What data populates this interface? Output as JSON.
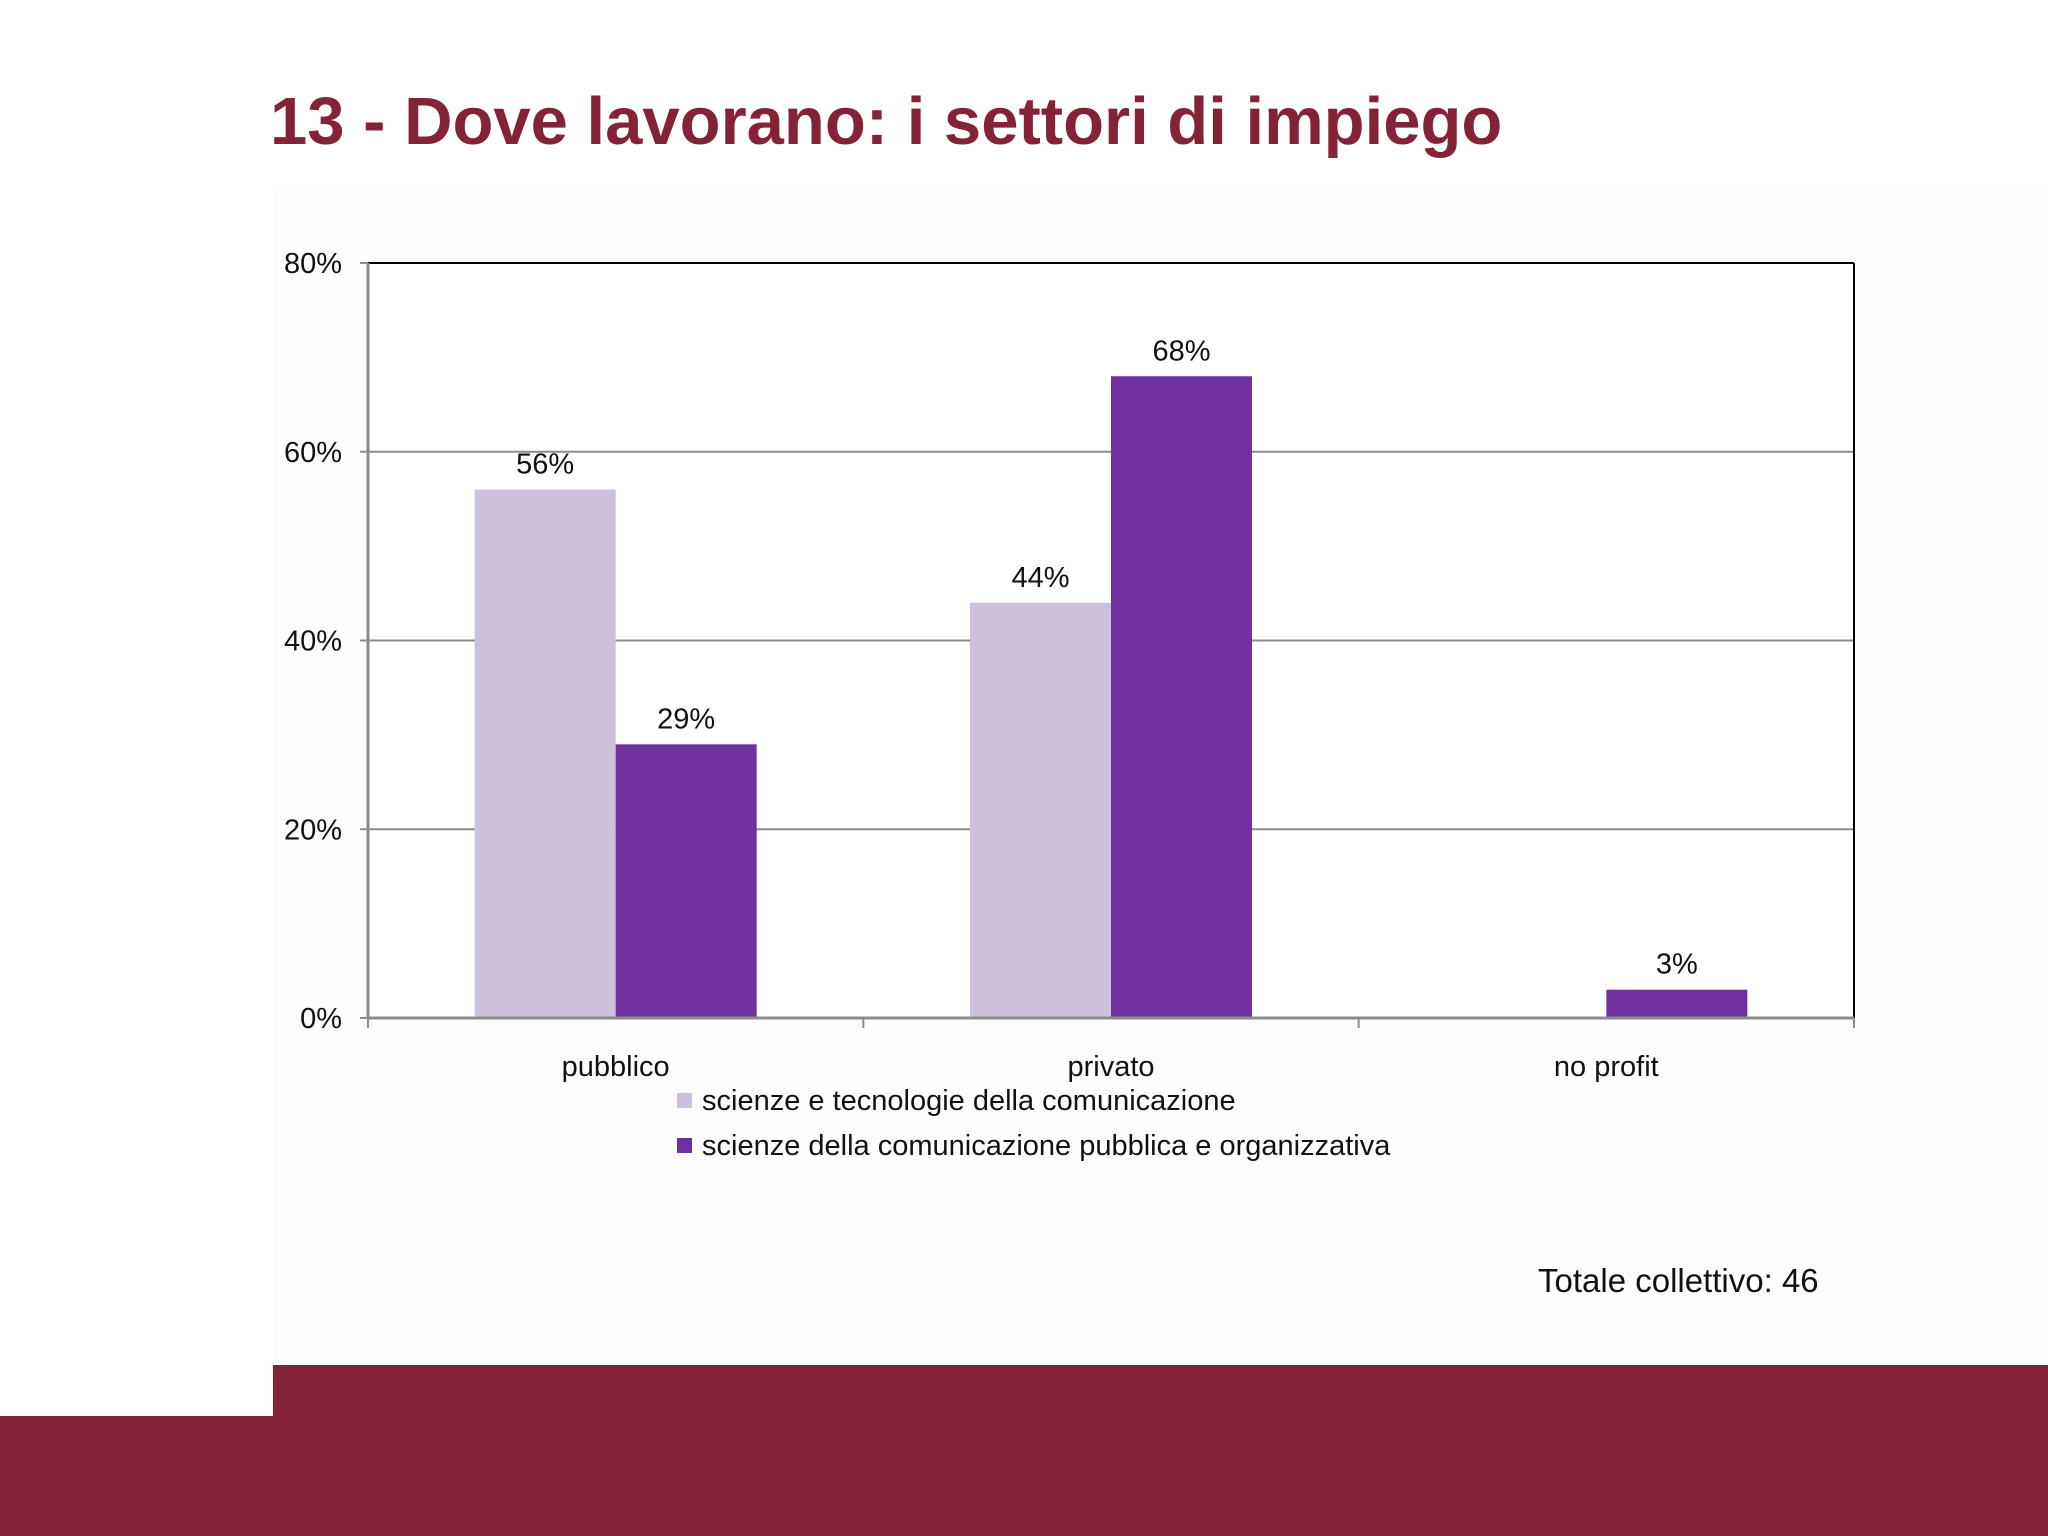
{
  "slide": {
    "title": "13 - Dove lavorano: i settori di impiego",
    "note": "Totale collettivo: 46",
    "colors": {
      "title": "#842337",
      "band": "#842337"
    }
  },
  "chart_data": {
    "type": "bar",
    "title": "",
    "xlabel": "",
    "ylabel": "",
    "categories": [
      "pubblico",
      "privato",
      "no profit"
    ],
    "series": [
      {
        "name": "scienze e tecnologie della comunicazione",
        "values": [
          56,
          44,
          0
        ],
        "labels": [
          "56%",
          "44%",
          ""
        ],
        "color": "#ccc0da"
      },
      {
        "name": "scienze della comunicazione pubblica e organizzativa",
        "values": [
          29,
          68,
          3
        ],
        "labels": [
          "29%",
          "68%",
          "3%"
        ],
        "color": "#7030a0"
      }
    ],
    "ylim": [
      0,
      80
    ],
    "yticks": [
      0,
      20,
      40,
      60,
      80
    ],
    "ytick_labels": [
      "0%",
      "20%",
      "40%",
      "60%",
      "80%"
    ],
    "grid": true,
    "legend_position": "bottom"
  }
}
